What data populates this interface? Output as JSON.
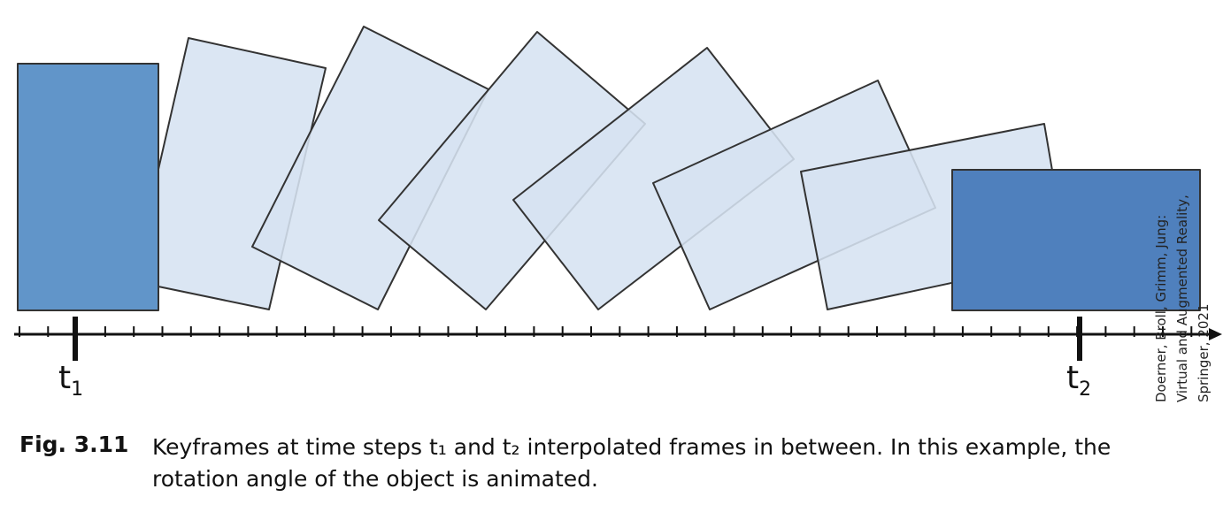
{
  "diagram": {
    "keyframe_labels": {
      "t1": {
        "base": "t",
        "sub": "1"
      },
      "t2": {
        "base": "t",
        "sub": "2"
      }
    },
    "colors": {
      "keyframe_1": "#6195c9",
      "keyframe_2": "#4f80bd",
      "interpolated_fill": "#d6e3f1",
      "outline": "#333333",
      "axis": "#111111"
    }
  },
  "credit": {
    "line1": "Doerner, Broll, Grimm, Jung:",
    "line2": "Virtual and Augmented Reality,",
    "line3": "Springer, 2021"
  },
  "caption": {
    "label": "Fig. 3.11",
    "text": "Keyframes at time steps t₁ and t₂ interpolated frames in between. In this example, the rotation angle of the object is animated."
  }
}
